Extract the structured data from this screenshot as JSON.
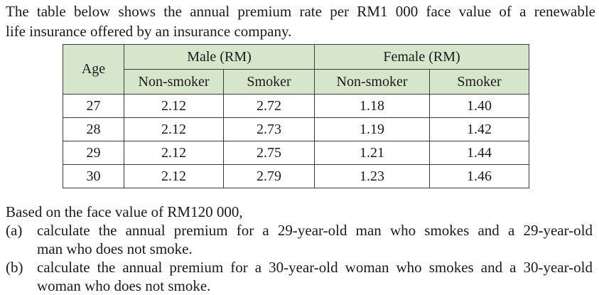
{
  "intro": {
    "line1": "The table below shows the annual premium rate per RM1 000 face value of a renewable",
    "line2": "life insurance offered by an insurance company."
  },
  "table": {
    "age_header": "Age",
    "group_male": "Male (RM)",
    "group_female": "Female (RM)",
    "sub_headers": [
      "Non-smoker",
      "Smoker",
      "Non-smoker",
      "Smoker"
    ],
    "rows": [
      [
        "27",
        "2.12",
        "2.72",
        "1.18",
        "1.40"
      ],
      [
        "28",
        "2.12",
        "2.73",
        "1.19",
        "1.42"
      ],
      [
        "29",
        "2.12",
        "2.75",
        "1.21",
        "1.44"
      ],
      [
        "30",
        "2.12",
        "2.79",
        "1.23",
        "1.46"
      ]
    ],
    "header_color": "#d5e6cb"
  },
  "question": {
    "lead": "Based on the face value of RM120 000,",
    "parts": [
      {
        "label": "(a)",
        "line1": "calculate the annual premium for a 29-year-old man who smokes and a 29-year-old",
        "line2": "man who does not smoke."
      },
      {
        "label": "(b)",
        "line1": "calculate the annual premium for a 30-year-old woman who smokes and a 30-year-old",
        "line2": "woman who does not smoke."
      }
    ]
  }
}
